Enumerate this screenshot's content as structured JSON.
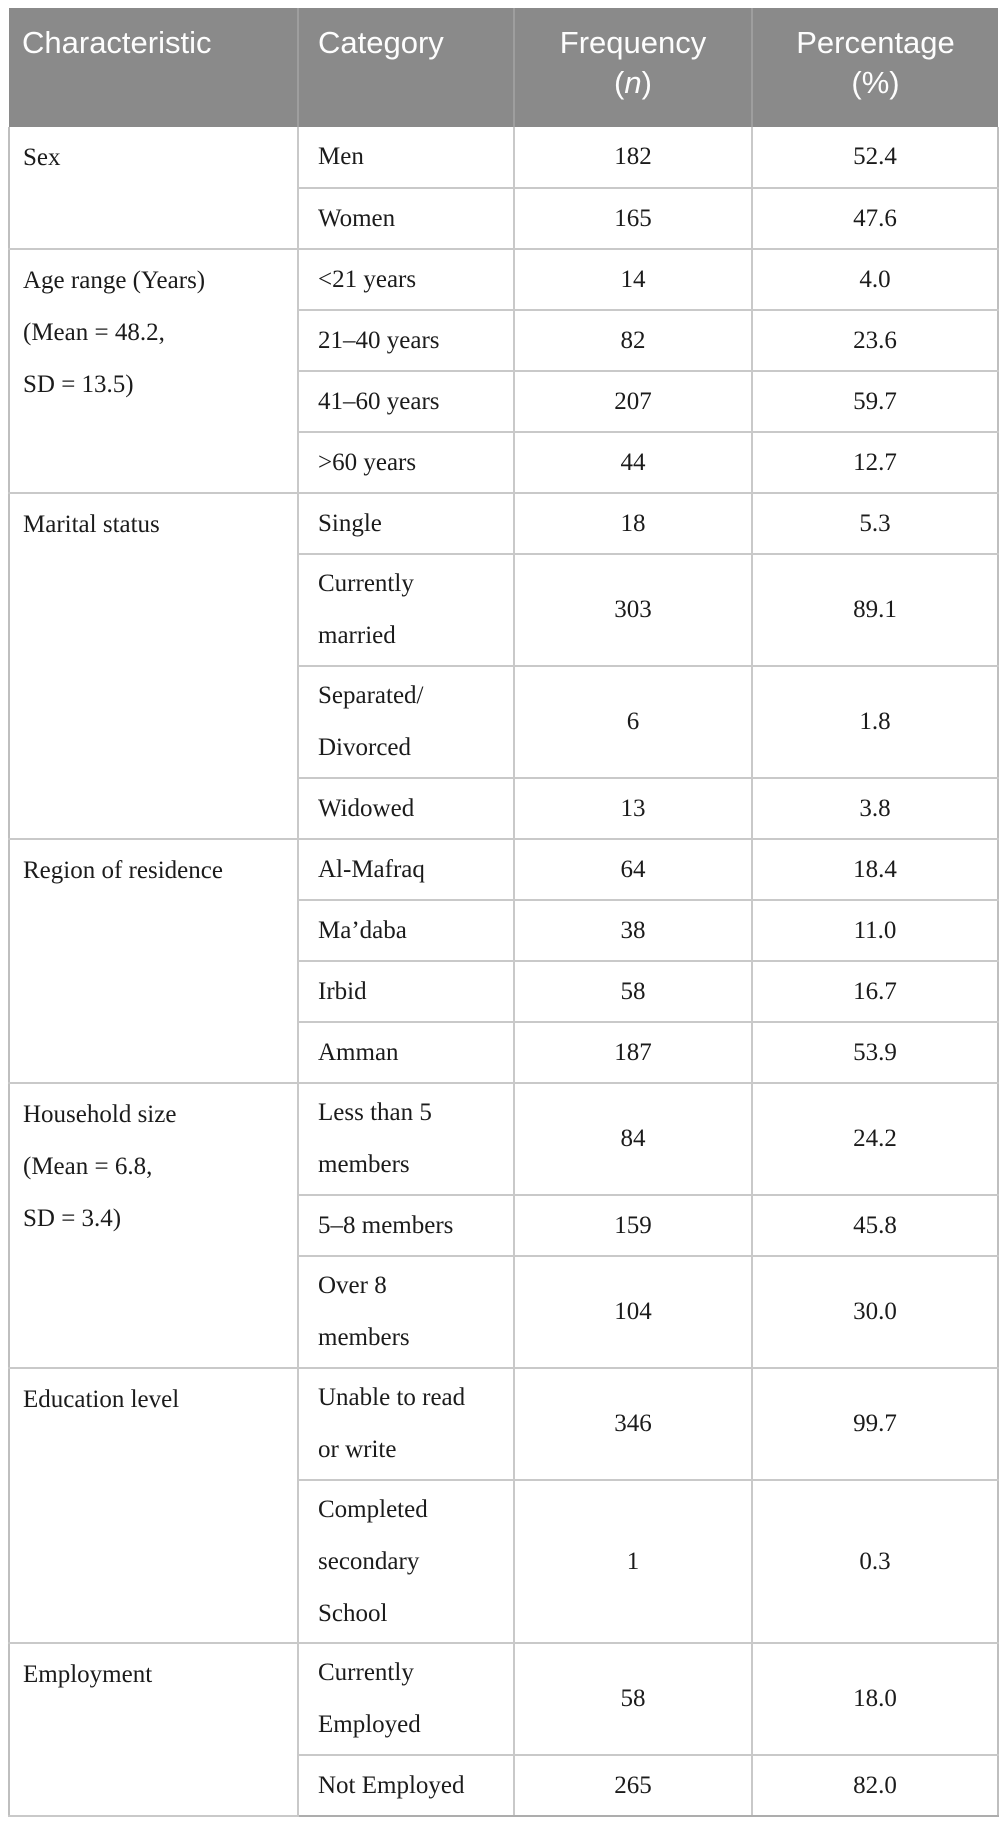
{
  "header": {
    "characteristic": "Characteristic",
    "category": "Category",
    "frequency_line1": "Frequency",
    "frequency_paren_open": "(",
    "frequency_n": "n",
    "frequency_paren_close": ")",
    "percentage_line1": "Percentage",
    "percentage_line2": "(%)"
  },
  "colors": {
    "header_bg": "#8a8a8a",
    "header_text": "#fdfdfd",
    "body_text": "#1b1b1b",
    "inner_border": "#c9c9c9",
    "section_border": "#a8a8a8",
    "header_divider": "#9e9e9e"
  },
  "sections": [
    {
      "characteristic": [
        "Sex"
      ],
      "rows": [
        {
          "category": [
            "Men"
          ],
          "frequency": "182",
          "percentage": "52.4"
        },
        {
          "category": [
            "Women"
          ],
          "frequency": "165",
          "percentage": "47.6"
        }
      ]
    },
    {
      "characteristic": [
        "Age range (Years)",
        "(Mean = 48.2,",
        "SD = 13.5)"
      ],
      "rows": [
        {
          "category": [
            "<21 years"
          ],
          "frequency": "14",
          "percentage": "4.0"
        },
        {
          "category": [
            "21–40 years"
          ],
          "frequency": "82",
          "percentage": "23.6"
        },
        {
          "category": [
            "41–60 years"
          ],
          "frequency": "207",
          "percentage": "59.7"
        },
        {
          "category": [
            ">60 years"
          ],
          "frequency": "44",
          "percentage": "12.7"
        }
      ]
    },
    {
      "characteristic": [
        "Marital status"
      ],
      "rows": [
        {
          "category": [
            "Single"
          ],
          "frequency": "18",
          "percentage": "5.3"
        },
        {
          "category": [
            "Currently",
            "married"
          ],
          "frequency": "303",
          "percentage": "89.1"
        },
        {
          "category": [
            "Separated/",
            "Divorced"
          ],
          "frequency": "6",
          "percentage": "1.8"
        },
        {
          "category": [
            "Widowed"
          ],
          "frequency": "13",
          "percentage": "3.8"
        }
      ]
    },
    {
      "characteristic": [
        "Region of residence"
      ],
      "rows": [
        {
          "category": [
            "Al-Mafraq"
          ],
          "frequency": "64",
          "percentage": "18.4"
        },
        {
          "category": [
            "Ma’daba"
          ],
          "frequency": "38",
          "percentage": "11.0"
        },
        {
          "category": [
            "Irbid"
          ],
          "frequency": "58",
          "percentage": "16.7"
        },
        {
          "category": [
            "Amman"
          ],
          "frequency": "187",
          "percentage": "53.9"
        }
      ]
    },
    {
      "characteristic": [
        "Household size",
        "(Mean = 6.8,",
        "SD = 3.4)"
      ],
      "rows": [
        {
          "category": [
            "Less than 5",
            "members"
          ],
          "frequency": "84",
          "percentage": "24.2"
        },
        {
          "category": [
            "5–8 members"
          ],
          "frequency": "159",
          "percentage": "45.8"
        },
        {
          "category": [
            "Over 8",
            "members"
          ],
          "frequency": "104",
          "percentage": "30.0"
        }
      ]
    },
    {
      "characteristic": [
        "Education level"
      ],
      "rows": [
        {
          "category": [
            "Unable to read",
            "or write"
          ],
          "frequency": "346",
          "percentage": "99.7"
        },
        {
          "category": [
            "Completed",
            "secondary",
            "School"
          ],
          "frequency": "1",
          "percentage": "0.3"
        }
      ]
    },
    {
      "characteristic": [
        "Employment"
      ],
      "rows": [
        {
          "category": [
            "Currently",
            "Employed"
          ],
          "frequency": "58",
          "percentage": "18.0"
        },
        {
          "category": [
            "Not Employed"
          ],
          "frequency": "265",
          "percentage": "82.0"
        }
      ]
    }
  ]
}
